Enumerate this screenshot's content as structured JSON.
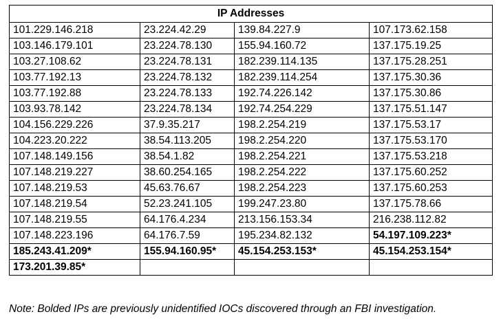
{
  "table": {
    "title": "IP Addresses",
    "rows": [
      [
        {
          "text": "101.229.146.218",
          "bold": false
        },
        {
          "text": "23.224.42.29",
          "bold": false
        },
        {
          "text": "139.84.227.9",
          "bold": false
        },
        {
          "text": "107.173.62.158",
          "bold": false
        }
      ],
      [
        {
          "text": "103.146.179.101",
          "bold": false
        },
        {
          "text": "23.224.78.130",
          "bold": false
        },
        {
          "text": "155.94.160.72",
          "bold": false
        },
        {
          "text": "137.175.19.25",
          "bold": false
        }
      ],
      [
        {
          "text": "103.27.108.62",
          "bold": false
        },
        {
          "text": "23.224.78.131",
          "bold": false
        },
        {
          "text": "182.239.114.135",
          "bold": false
        },
        {
          "text": "137.175.28.251",
          "bold": false
        }
      ],
      [
        {
          "text": "103.77.192.13",
          "bold": false
        },
        {
          "text": "23.224.78.132",
          "bold": false
        },
        {
          "text": "182.239.114.254",
          "bold": false
        },
        {
          "text": "137.175.30.36",
          "bold": false
        }
      ],
      [
        {
          "text": "103.77.192.88",
          "bold": false
        },
        {
          "text": "23.224.78.133",
          "bold": false
        },
        {
          "text": "192.74.226.142",
          "bold": false
        },
        {
          "text": "137.175.30.86",
          "bold": false
        }
      ],
      [
        {
          "text": "103.93.78.142",
          "bold": false
        },
        {
          "text": "23.224.78.134",
          "bold": false
        },
        {
          "text": "192.74.254.229",
          "bold": false
        },
        {
          "text": "137.175.51.147",
          "bold": false
        }
      ],
      [
        {
          "text": "104.156.229.226",
          "bold": false
        },
        {
          "text": "37.9.35.217",
          "bold": false
        },
        {
          "text": "198.2.254.219",
          "bold": false
        },
        {
          "text": "137.175.53.17",
          "bold": false
        }
      ],
      [
        {
          "text": "104.223.20.222",
          "bold": false
        },
        {
          "text": "38.54.113.205",
          "bold": false
        },
        {
          "text": "198.2.254.220",
          "bold": false
        },
        {
          "text": "137.175.53.170",
          "bold": false
        }
      ],
      [
        {
          "text": "107.148.149.156",
          "bold": false
        },
        {
          "text": "38.54.1.82",
          "bold": false
        },
        {
          "text": "198.2.254.221",
          "bold": false
        },
        {
          "text": "137.175.53.218",
          "bold": false
        }
      ],
      [
        {
          "text": "107.148.219.227",
          "bold": false
        },
        {
          "text": "38.60.254.165",
          "bold": false
        },
        {
          "text": "198.2.254.222",
          "bold": false
        },
        {
          "text": "137.175.60.252",
          "bold": false
        }
      ],
      [
        {
          "text": "107.148.219.53",
          "bold": false
        },
        {
          "text": "45.63.76.67",
          "bold": false
        },
        {
          "text": "198.2.254.223",
          "bold": false
        },
        {
          "text": "137.175.60.253",
          "bold": false
        }
      ],
      [
        {
          "text": "107.148.219.54",
          "bold": false
        },
        {
          "text": "52.23.241.105",
          "bold": false
        },
        {
          "text": "199.247.23.80",
          "bold": false
        },
        {
          "text": "137.175.78.66",
          "bold": false
        }
      ],
      [
        {
          "text": "107.148.219.55",
          "bold": false
        },
        {
          "text": "64.176.4.234",
          "bold": false
        },
        {
          "text": "213.156.153.34",
          "bold": false
        },
        {
          "text": "216.238.112.82",
          "bold": false
        }
      ],
      [
        {
          "text": "107.148.223.196",
          "bold": false
        },
        {
          "text": "64.176.7.59",
          "bold": false
        },
        {
          "text": "195.234.82.132",
          "bold": false
        },
        {
          "text": "54.197.109.223*",
          "bold": true
        }
      ],
      [
        {
          "text": "185.243.41.209*",
          "bold": true
        },
        {
          "text": "155.94.160.95*",
          "bold": true
        },
        {
          "text": "45.154.253.153*",
          "bold": true
        },
        {
          "text": "45.154.253.154*",
          "bold": true
        }
      ],
      [
        {
          "text": "173.201.39.85*",
          "bold": true
        },
        {
          "text": "",
          "bold": false
        },
        {
          "text": "",
          "bold": false
        },
        {
          "text": "",
          "bold": false
        }
      ]
    ]
  },
  "note": "Note: Bolded IPs are previously unidentified IOCs discovered through an FBI investigation."
}
